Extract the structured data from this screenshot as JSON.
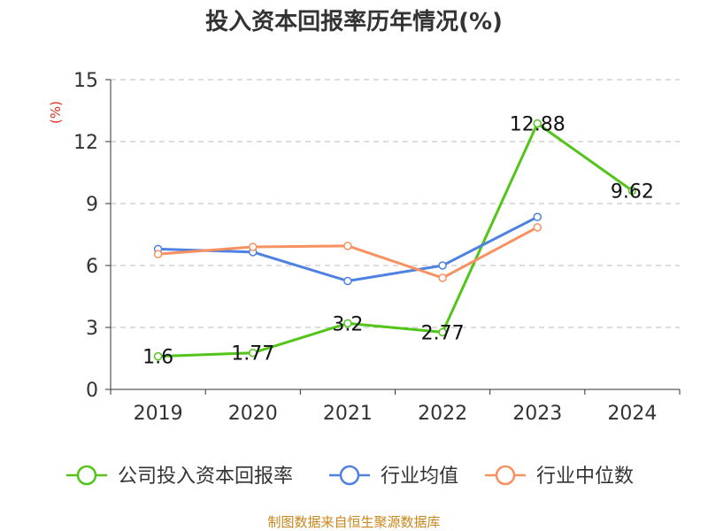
{
  "chart_data": {
    "type": "line",
    "title": "投入资本回报率历年情况(%)",
    "ylabel": "(%)",
    "categories": [
      "2019",
      "2020",
      "2021",
      "2022",
      "2023",
      "2024"
    ],
    "ylim": [
      0,
      15
    ],
    "yticks": [
      0,
      3,
      6,
      9,
      12,
      15
    ],
    "grid": true,
    "legend_position": "bottom",
    "series": [
      {
        "name": "公司投入资本回报率",
        "color": "#52c41a",
        "values": [
          1.6,
          1.77,
          3.2,
          2.77,
          12.88,
          9.62
        ],
        "labels": [
          "1.6",
          "1.77",
          "3.2",
          "2.77",
          "12.88",
          "9.62"
        ]
      },
      {
        "name": "行业均值",
        "color": "#4f81e0",
        "values": [
          6.8,
          6.65,
          5.25,
          6.0,
          8.35,
          null
        ]
      },
      {
        "name": "行业中位数",
        "color": "#f7915f",
        "values": [
          6.55,
          6.9,
          6.95,
          5.4,
          7.85,
          null
        ]
      }
    ],
    "source": "制图数据来自恒生聚源数据库"
  }
}
